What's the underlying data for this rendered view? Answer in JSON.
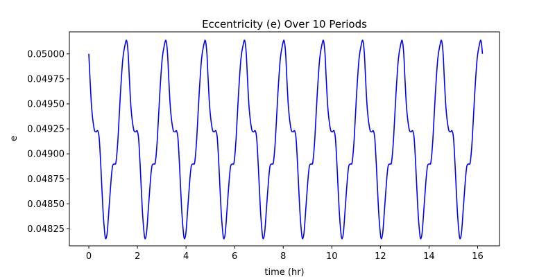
{
  "chart_data": {
    "type": "line",
    "title": "Eccentricity (e) Over 10 Periods",
    "xlabel": "time (hr)",
    "ylabel": "e",
    "xlim": [
      -0.8,
      16.9
    ],
    "ylim": [
      0.04808,
      0.05022
    ],
    "x_ticks": [
      0,
      2,
      4,
      6,
      8,
      10,
      12,
      14,
      16
    ],
    "x_tick_labels": [
      "0",
      "2",
      "4",
      "6",
      "8",
      "10",
      "12",
      "14",
      "16"
    ],
    "y_ticks": [
      0.04825,
      0.0485,
      0.04875,
      0.049,
      0.04925,
      0.0495,
      0.04975,
      0.05
    ],
    "y_tick_labels": [
      "0.04825",
      "0.04850",
      "0.04875",
      "0.04900",
      "0.04925",
      "0.04950",
      "0.04975",
      "0.05000"
    ],
    "grid": false,
    "series": [
      {
        "color": "#0000ff",
        "period": 1.62,
        "x_end": 16.2,
        "cycle_keypoints": [
          [
            0.0,
            0.05
          ],
          [
            0.05,
            0.04975
          ],
          [
            0.12,
            0.04945
          ],
          [
            0.22,
            0.04925
          ],
          [
            0.3,
            0.04922
          ],
          [
            0.37,
            0.04923
          ],
          [
            0.43,
            0.04915
          ],
          [
            0.5,
            0.04885
          ],
          [
            0.58,
            0.04845
          ],
          [
            0.65,
            0.04822
          ],
          [
            0.7,
            0.04815
          ],
          [
            0.76,
            0.04822
          ],
          [
            0.83,
            0.04845
          ],
          [
            0.92,
            0.04875
          ],
          [
            0.98,
            0.04888
          ],
          [
            1.06,
            0.0489
          ],
          [
            1.12,
            0.04892
          ],
          [
            1.2,
            0.04915
          ],
          [
            1.3,
            0.0496
          ],
          [
            1.4,
            0.04995
          ],
          [
            1.5,
            0.0501
          ],
          [
            1.56,
            0.05013
          ],
          [
            1.62,
            0.05
          ]
        ]
      }
    ]
  }
}
